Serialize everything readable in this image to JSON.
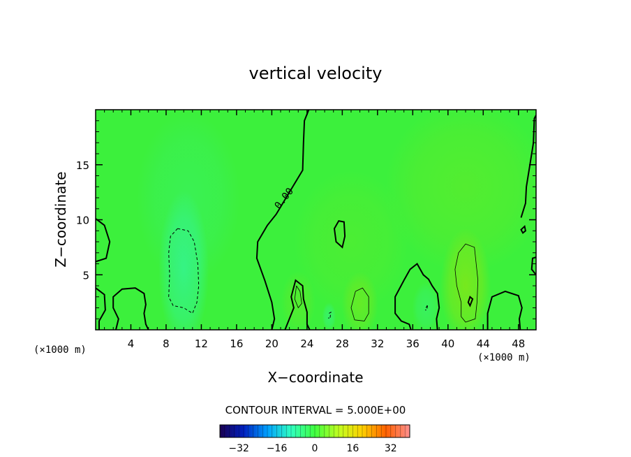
{
  "chart_data": {
    "type": "heatmap",
    "title": "vertical velocity",
    "xlabel": "X−coordinate",
    "ylabel": "Z−coordinate",
    "x_unit_left": "(×1000 m)",
    "x_unit_right": "(×1000 m)",
    "xlim": [
      0,
      50
    ],
    "ylim": [
      0,
      20
    ],
    "x_ticks": [
      "4",
      "8",
      "12",
      "16",
      "20",
      "24",
      "28",
      "32",
      "36",
      "40",
      "44",
      "48"
    ],
    "y_ticks": [
      "5",
      "10",
      "15"
    ],
    "contour_label": "0.00",
    "contour_interval_text": "CONTOUR INTERVAL = 5.000E+00",
    "colorbar": {
      "range": [
        -40,
        40
      ],
      "ticks": [
        "−32",
        "−16",
        "0",
        "16",
        "32"
      ],
      "colors": [
        "#1a0050",
        "#0020c0",
        "#00a0ff",
        "#30ffc0",
        "#40ff40",
        "#c0ff20",
        "#ffd000",
        "#ff6000",
        "#ff9090"
      ]
    },
    "field_colors": {
      "background": "#3cf03c",
      "downdraft": "#34f49a",
      "updraft": "#7ae81c"
    },
    "blobs": [
      {
        "x": 10,
        "z": 5.5,
        "rx": 2.2,
        "rz": 5.5,
        "w": -6,
        "color_key": "downdraft"
      },
      {
        "x": 10.5,
        "z": 12,
        "rx": 4.5,
        "rz": 6,
        "w": -2,
        "color_key": "downdraft"
      },
      {
        "x": 42,
        "z": 4,
        "rx": 2.2,
        "rz": 4,
        "w": 8,
        "color_key": "updraft"
      },
      {
        "x": 42,
        "z": 13,
        "rx": 7,
        "rz": 6,
        "w": 3,
        "color_key": "updraft"
      },
      {
        "x": 30,
        "z": 2.3,
        "rx": 1.6,
        "rz": 2.3,
        "w": 5,
        "color_key": "updraft"
      },
      {
        "x": 23,
        "z": 2.5,
        "rx": 1.5,
        "rz": 2.2,
        "w": 3,
        "color_key": "updraft"
      },
      {
        "x": 29,
        "z": 8,
        "rx": 5,
        "rz": 5,
        "w": 2,
        "color_key": "updraft"
      },
      {
        "x": 26.5,
        "z": 1.2,
        "rx": 0.6,
        "rz": 1.0,
        "w": -4,
        "color_key": "downdraft"
      },
      {
        "x": 37.5,
        "z": 2,
        "rx": 1.2,
        "rz": 1.8,
        "w": -3,
        "color_key": "downdraft"
      }
    ],
    "contours_zero": [
      [
        [
          20,
          0
        ],
        [
          20.3,
          1
        ],
        [
          20,
          2.5
        ],
        [
          19.2,
          4.5
        ],
        [
          18.3,
          6.5
        ],
        [
          18.4,
          8
        ],
        [
          19.5,
          9.5
        ],
        [
          20.5,
          10.5
        ],
        [
          22,
          12.5
        ],
        [
          23.5,
          14.5
        ],
        [
          23.6,
          17
        ],
        [
          23.7,
          19
        ],
        [
          24.2,
          20
        ]
      ],
      [
        [
          0,
          10.1
        ],
        [
          1,
          9.5
        ],
        [
          1.6,
          8
        ],
        [
          1.2,
          6.5
        ],
        [
          0,
          6.2
        ]
      ],
      [
        [
          0,
          3.8
        ],
        [
          1,
          3.2
        ],
        [
          1.1,
          1.8
        ],
        [
          0.4,
          0.8
        ],
        [
          0.4,
          0
        ]
      ],
      [
        [
          2.3,
          0
        ],
        [
          2.6,
          1
        ],
        [
          2,
          2
        ],
        [
          2,
          3
        ],
        [
          3,
          3.7
        ],
        [
          4.5,
          3.8
        ],
        [
          5.5,
          3.3
        ],
        [
          5.7,
          2.3
        ],
        [
          5.5,
          1.5
        ],
        [
          5.7,
          0.5
        ],
        [
          6,
          0
        ]
      ],
      [
        [
          21.5,
          0
        ],
        [
          22,
          1
        ],
        [
          22.5,
          2
        ],
        [
          22.2,
          3
        ],
        [
          22.7,
          4.5
        ],
        [
          23.5,
          4
        ],
        [
          23.6,
          2.8
        ],
        [
          24,
          1.6
        ],
        [
          24,
          0.5
        ],
        [
          24.3,
          0
        ]
      ],
      [
        [
          35.8,
          0
        ],
        [
          35.6,
          0.5
        ],
        [
          34.7,
          0.8
        ],
        [
          34,
          1.5
        ],
        [
          34,
          3
        ],
        [
          35,
          4.5
        ],
        [
          35.7,
          5.5
        ],
        [
          36.5,
          6
        ],
        [
          37.2,
          5
        ],
        [
          37.8,
          4.6
        ],
        [
          38.2,
          4
        ],
        [
          38.8,
          3.3
        ],
        [
          39,
          2
        ],
        [
          38.7,
          1
        ],
        [
          38.8,
          0
        ]
      ],
      [
        [
          44.5,
          0
        ],
        [
          44.5,
          1.5
        ],
        [
          45,
          3
        ],
        [
          46.5,
          3.5
        ],
        [
          48,
          3.1
        ],
        [
          48.4,
          2
        ],
        [
          48.1,
          1
        ],
        [
          48.2,
          0
        ]
      ],
      [
        [
          50,
          5
        ],
        [
          49.5,
          5.5
        ],
        [
          49.6,
          6.5
        ],
        [
          50,
          6.6
        ]
      ],
      [
        [
          48.3,
          10.2
        ],
        [
          48.8,
          11.5
        ],
        [
          48.9,
          13
        ],
        [
          49.3,
          15
        ],
        [
          49.7,
          17
        ],
        [
          49.8,
          19.2
        ],
        [
          50,
          19.5
        ]
      ]
    ],
    "contours_zero_closed": [
      [
        [
          27.3,
          8
        ],
        [
          28,
          7.5
        ],
        [
          28.3,
          8.5
        ],
        [
          28.2,
          9.8
        ],
        [
          27.6,
          9.9
        ],
        [
          27.1,
          9.2
        ]
      ],
      [
        [
          48.3,
          9.1
        ],
        [
          48.7,
          9.4
        ],
        [
          48.8,
          9.0
        ],
        [
          48.5,
          8.8
        ]
      ],
      [
        [
          42.5,
          2.2
        ],
        [
          42.8,
          2.8
        ],
        [
          42.5,
          3.0
        ],
        [
          42.3,
          2.5
        ]
      ]
    ],
    "contours_neg": [
      [
        [
          9.3,
          9.2
        ],
        [
          8.5,
          8.5
        ],
        [
          8.3,
          7
        ],
        [
          8.4,
          5
        ],
        [
          8.3,
          3
        ],
        [
          8.8,
          2.2
        ],
        [
          10,
          2
        ],
        [
          11,
          1.5
        ],
        [
          11.5,
          2.5
        ],
        [
          11.7,
          4
        ],
        [
          11.6,
          6
        ],
        [
          11.2,
          8
        ],
        [
          10.5,
          9
        ],
        [
          9.3,
          9.2
        ]
      ],
      [
        [
          37.5,
          2
        ],
        [
          37.7,
          2.3
        ],
        [
          37.6,
          1.8
        ],
        [
          37.4,
          1.8
        ]
      ],
      [
        [
          26.5,
          1.5
        ],
        [
          26.7,
          1.6
        ],
        [
          26.6,
          1
        ],
        [
          26.4,
          1.1
        ]
      ]
    ],
    "contours_pos": [
      [
        [
          41.5,
          2.5
        ],
        [
          41,
          4
        ],
        [
          40.8,
          5.5
        ],
        [
          41.2,
          7
        ],
        [
          42,
          7.8
        ],
        [
          43,
          7.5
        ],
        [
          43.2,
          6
        ],
        [
          43.4,
          4.5
        ],
        [
          43.3,
          2.5
        ],
        [
          43.1,
          1
        ],
        [
          42,
          0.7
        ],
        [
          41.5,
          1.2
        ],
        [
          41.5,
          2.5
        ]
      ],
      [
        [
          29.5,
          3.5
        ],
        [
          30.3,
          3.8
        ],
        [
          31,
          3
        ],
        [
          31,
          1.5
        ],
        [
          30.5,
          0.8
        ],
        [
          29.4,
          0.9
        ],
        [
          29,
          2
        ],
        [
          29.5,
          3.5
        ]
      ],
      [
        [
          22.8,
          4
        ],
        [
          23.2,
          3.5
        ],
        [
          23.4,
          2.4
        ],
        [
          23,
          2
        ],
        [
          22.6,
          2.8
        ],
        [
          22.8,
          4
        ]
      ]
    ]
  }
}
